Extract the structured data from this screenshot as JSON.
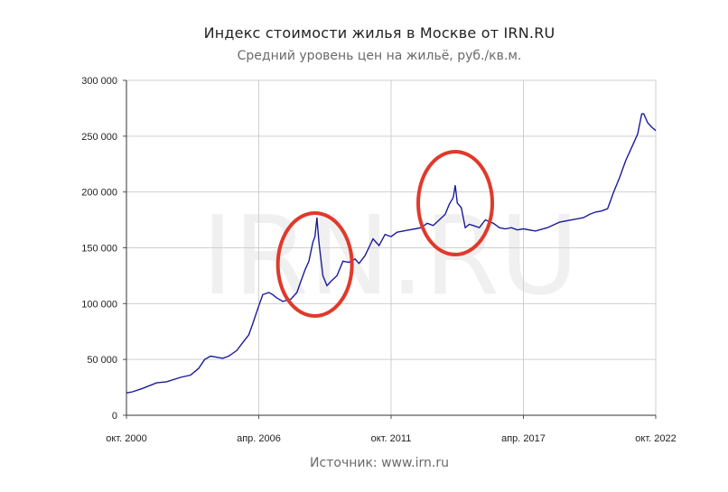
{
  "title": "Индекс стоимости жилья в Москве от IRN.RU",
  "subtitle": "Средний уровень цен на жильё, руб./кв.м.",
  "source": "Источник: www.irn.ru",
  "watermark": "IRN.RU",
  "colors": {
    "line": "#1b1b9a",
    "grid": "#cfcfcf",
    "highlight": "#e0392b"
  },
  "chart_data": {
    "type": "line",
    "title": "Индекс стоимости жилья в Москве от IRN.RU",
    "subtitle": "Средний уровень цен на жильё, руб./кв.м.",
    "xlabel": "",
    "ylabel": "",
    "ylim": [
      0,
      300000
    ],
    "yticks": [
      0,
      50000,
      100000,
      150000,
      200000,
      250000,
      300000
    ],
    "ytick_labels": [
      "0",
      "50 000",
      "100 000",
      "150 000",
      "200 000",
      "250 000",
      "300 000"
    ],
    "xlim": [
      "2000-10",
      "2022-10"
    ],
    "xtick_labels": [
      "окт. 2000",
      "апр. 2006",
      "окт. 2011",
      "апр. 2017",
      "окт. 2022"
    ],
    "xtick_dates": [
      "2000-10",
      "2006-04",
      "2011-10",
      "2017-04",
      "2022-10"
    ],
    "grid": true,
    "highlights": [
      {
        "x": "2008-08",
        "y": 135000
      },
      {
        "x": "2014-06",
        "y": 190000
      }
    ],
    "series": [
      {
        "x": [
          "2000-10",
          "2001-01",
          "2001-06",
          "2002-01",
          "2002-06",
          "2003-01",
          "2003-06",
          "2003-10",
          "2004-01",
          "2004-04",
          "2004-07",
          "2004-10",
          "2005-01",
          "2005-05",
          "2005-08",
          "2005-11",
          "2006-01",
          "2006-04",
          "2006-06",
          "2006-09",
          "2006-11",
          "2007-01",
          "2007-04",
          "2007-08",
          "2007-11",
          "2008-01",
          "2008-03",
          "2008-05",
          "2008-07",
          "2008-08",
          "2008-09",
          "2008-10",
          "2008-11",
          "2008-12",
          "2009-02",
          "2009-04",
          "2009-07",
          "2009-10",
          "2010-01",
          "2010-04",
          "2010-06",
          "2010-09",
          "2011-01",
          "2011-04",
          "2011-07",
          "2011-10",
          "2012-01",
          "2012-04",
          "2012-07",
          "2012-10",
          "2013-01",
          "2013-04",
          "2013-07",
          "2013-10",
          "2014-01",
          "2014-03",
          "2014-05",
          "2014-06",
          "2014-07",
          "2014-09",
          "2014-11",
          "2015-01",
          "2015-03",
          "2015-06",
          "2015-09",
          "2016-01",
          "2016-04",
          "2016-07",
          "2016-10",
          "2017-01",
          "2017-04",
          "2017-10",
          "2018-04",
          "2018-10",
          "2019-04",
          "2019-10",
          "2020-01",
          "2020-04",
          "2020-07",
          "2020-10",
          "2021-01",
          "2021-04",
          "2021-07",
          "2021-10",
          "2022-01",
          "2022-03",
          "2022-04",
          "2022-06",
          "2022-08",
          "2022-10"
        ],
        "y": [
          20000,
          21000,
          24000,
          29000,
          30000,
          34000,
          36000,
          42000,
          50000,
          53000,
          52000,
          51000,
          53000,
          58000,
          65000,
          72000,
          82000,
          98000,
          108000,
          110000,
          108000,
          105000,
          102000,
          104000,
          110000,
          120000,
          130000,
          138000,
          155000,
          160000,
          177000,
          155000,
          140000,
          125000,
          116000,
          120000,
          125000,
          138000,
          137000,
          140000,
          136000,
          143000,
          158000,
          152000,
          162000,
          160000,
          164000,
          165000,
          166000,
          167000,
          168000,
          172000,
          170000,
          175000,
          180000,
          189000,
          195000,
          206000,
          190000,
          186000,
          168000,
          171000,
          170000,
          168000,
          175000,
          172000,
          168000,
          167000,
          168000,
          166000,
          167000,
          165000,
          168000,
          173000,
          175000,
          177000,
          180000,
          182000,
          183000,
          185000,
          200000,
          213000,
          228000,
          240000,
          252000,
          270000,
          270000,
          262000,
          258000,
          255000
        ]
      }
    ]
  }
}
